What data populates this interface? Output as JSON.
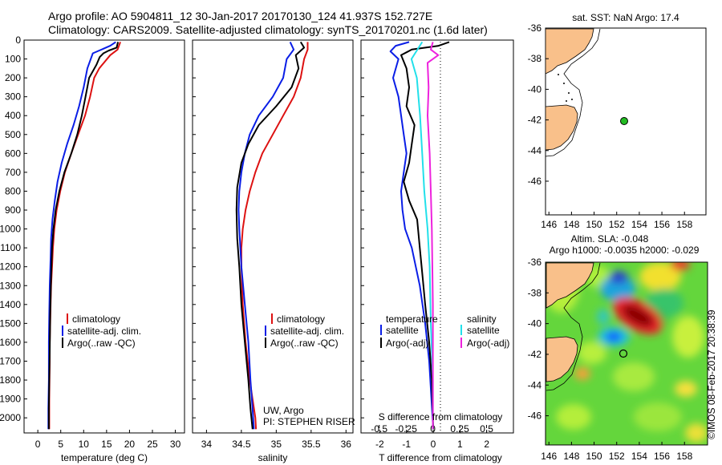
{
  "header": {
    "line1": "Argo profile: AO 5904811_12 30-Jan-2017 20170130_124 41.937S 152.727E",
    "line2": "Climatology: CARS2009. Satellite-adjusted climatology: synTS_20170201.nc (1.6d later)"
  },
  "side_label": "©IMOS 08-Feb-2017 20:38:39",
  "colors": {
    "climatology": "#dd1111",
    "satellite": "#0a1ee6",
    "argo": "#000000",
    "sal_satellite": "#22e0ea",
    "sal_argo": "#ee22dd",
    "land": "#f9c08a",
    "marker_green": "#22bb22"
  },
  "panels": {
    "temperature": {
      "xlabel": "temperature (deg C)",
      "xticks": [
        "0",
        "5",
        "10",
        "15",
        "20",
        "25",
        "30"
      ],
      "legend": [
        "climatology",
        "satellite-adj. clim.",
        "Argo(..raw -QC)"
      ]
    },
    "salinity": {
      "xlabel": "salinity",
      "xticks": [
        "34",
        "34.5",
        "35",
        "35.5",
        "36"
      ],
      "legend": [
        "climatology",
        "satellite-adj. clim.",
        "Argo(..raw -QC)"
      ],
      "note1": "UW, Argo",
      "note2": "PI: STEPHEN RISER"
    },
    "difference": {
      "xlabel": "T difference from climatology",
      "xlabel_top": "S difference from climatology",
      "xticks": [
        "-2",
        "-1",
        "0",
        "1",
        "2"
      ],
      "xticks_top": [
        "-0.5",
        "-0.25",
        "0",
        "0.25",
        "0.5"
      ],
      "legend_t_title": "temperature",
      "legend_s_title": "salinity",
      "legend_t": [
        "satellite",
        "Argo(-adj)"
      ],
      "legend_s": [
        "satellite",
        "Argo(-adj)"
      ]
    },
    "depth_ticks": [
      "0",
      "100",
      "200",
      "300",
      "400",
      "500",
      "600",
      "700",
      "800",
      "900",
      "1000",
      "1100",
      "1200",
      "1300",
      "1400",
      "1500",
      "1600",
      "1700",
      "1800",
      "1900",
      "2000"
    ]
  },
  "maps": {
    "sst_title": "sat. SST: NaN Argo: 17.4",
    "sla_title1": "Altim. SLA: -0.048",
    "sla_title2": "Argo h1000: -0.0035 h2000: -0.029",
    "lon_ticks": [
      "146",
      "148",
      "150",
      "152",
      "154",
      "156",
      "158"
    ],
    "lat_ticks": [
      "-36",
      "-38",
      "-40",
      "-42",
      "-44",
      "-46"
    ]
  },
  "chart_data": [
    {
      "type": "line",
      "title": "",
      "xlabel": "temperature (deg C)",
      "ylabel": "",
      "xlim": [
        -3,
        32
      ],
      "ylim": [
        2080,
        0
      ],
      "series": [
        {
          "name": "climatology",
          "color": "#dd1111",
          "x": [
            18.0,
            17.4,
            15.8,
            13.4,
            12.3,
            11.4,
            10.3,
            8.8,
            7.3,
            5.9,
            4.9,
            4.1,
            3.6,
            3.3,
            3.1,
            2.9,
            2.8,
            2.7,
            2.6,
            2.6,
            2.5,
            2.5
          ],
          "y": [
            10,
            50,
            80,
            150,
            200,
            300,
            400,
            500,
            600,
            700,
            800,
            900,
            1000,
            1100,
            1200,
            1300,
            1400,
            1500,
            1600,
            1700,
            1900,
            2060
          ]
        },
        {
          "name": "satellite-adj. clim.",
          "color": "#0a1ee6",
          "x": [
            17.0,
            15.8,
            12.0,
            10.8,
            10.0,
            9.0,
            7.8,
            6.4,
            5.2,
            4.3,
            3.7,
            3.2,
            2.9,
            2.8,
            2.6,
            2.5,
            2.4,
            2.4,
            2.3,
            2.3
          ],
          "y": [
            10,
            30,
            70,
            150,
            250,
            350,
            450,
            550,
            650,
            750,
            850,
            950,
            1050,
            1150,
            1300,
            1450,
            1600,
            1800,
            1950,
            2060
          ]
        },
        {
          "name": "Argo(..raw -QC)",
          "color": "#000000",
          "x": [
            17.5,
            17.2,
            15.5,
            14.3,
            13.5,
            12.8,
            11.2,
            10.4,
            9.6,
            8.6,
            7.3,
            5.8,
            4.7,
            3.9,
            3.4,
            3.1,
            2.9,
            2.7,
            2.6,
            2.5,
            2.4,
            2.4
          ],
          "y": [
            10,
            40,
            55,
            70,
            90,
            130,
            200,
            300,
            400,
            500,
            600,
            700,
            800,
            900,
            1000,
            1100,
            1250,
            1450,
            1650,
            1800,
            1950,
            2060
          ]
        }
      ]
    },
    {
      "type": "line",
      "title": "",
      "xlabel": "salinity",
      "ylabel": "",
      "xlim": [
        33.8,
        36.1
      ],
      "ylim": [
        2080,
        0
      ],
      "series": [
        {
          "name": "climatology",
          "color": "#dd1111",
          "x": [
            35.45,
            35.45,
            35.4,
            35.35,
            35.25,
            35.1,
            34.95,
            34.8,
            34.7,
            34.62,
            34.56,
            34.52,
            34.5,
            34.5,
            34.52,
            34.56,
            34.62,
            34.66,
            34.7,
            34.71
          ],
          "y": [
            10,
            50,
            100,
            200,
            300,
            400,
            500,
            600,
            700,
            800,
            900,
            1000,
            1100,
            1200,
            1400,
            1600,
            1800,
            1900,
            2000,
            2060
          ]
        },
        {
          "name": "satellite-adj. clim.",
          "color": "#0a1ee6",
          "x": [
            35.2,
            35.25,
            35.15,
            35.1,
            34.95,
            34.75,
            34.62,
            34.55,
            34.5,
            34.47,
            34.46,
            34.47,
            34.5,
            34.55,
            34.6,
            34.63,
            34.66,
            34.68
          ],
          "y": [
            10,
            50,
            100,
            200,
            300,
            400,
            500,
            600,
            700,
            800,
            900,
            1000,
            1200,
            1400,
            1600,
            1800,
            1950,
            2060
          ]
        },
        {
          "name": "Argo(..raw -QC)",
          "color": "#000000",
          "x": [
            35.35,
            35.4,
            35.28,
            35.32,
            35.22,
            35.0,
            34.75,
            34.6,
            34.5,
            34.44,
            34.43,
            34.44,
            34.47,
            34.5,
            34.55,
            34.6,
            34.63,
            34.66
          ],
          "y": [
            10,
            40,
            80,
            150,
            250,
            350,
            450,
            550,
            650,
            780,
            900,
            1050,
            1200,
            1400,
            1600,
            1800,
            1950,
            2060
          ]
        }
      ]
    },
    {
      "type": "line",
      "title": "",
      "xlabel": "T difference from climatology",
      "xlabel_top": "S difference from climatology",
      "ylabel": "",
      "xlim": [
        -2.7,
        3.0
      ],
      "xlim_top": [
        -0.67,
        0.75
      ],
      "ylim": [
        2080,
        0
      ],
      "series": [
        {
          "name": "temperature satellite",
          "axis": "T",
          "color": "#0a1ee6",
          "x": [
            -0.9,
            -1.4,
            -1.6,
            -1.3,
            -1.5,
            -1.3,
            -1.2,
            -1.1,
            -1.0,
            -1.1,
            -1.2,
            -1.15,
            -1.05,
            -0.8,
            -0.5,
            -0.3,
            -0.15,
            0.0
          ],
          "y": [
            10,
            30,
            60,
            100,
            200,
            300,
            400,
            500,
            600,
            700,
            800,
            900,
            1000,
            1100,
            1300,
            1500,
            1700,
            2060
          ]
        },
        {
          "name": "temperature Argo(-adj)",
          "axis": "T",
          "color": "#000000",
          "x": [
            0.6,
            0.2,
            -0.8,
            -1.2,
            -1.0,
            -0.9,
            -1.0,
            -0.7,
            -0.8,
            -0.9,
            -1.1,
            -0.9,
            -0.6,
            -0.5,
            -0.4,
            -0.3,
            -0.15,
            -0.05,
            0.0
          ],
          "y": [
            10,
            30,
            50,
            80,
            150,
            250,
            350,
            450,
            550,
            650,
            750,
            850,
            950,
            1100,
            1250,
            1400,
            1600,
            1800,
            2060
          ]
        },
        {
          "name": "salinity satellite",
          "axis": "S",
          "color": "#22e0ea",
          "x": [
            -0.1,
            -0.2,
            -0.15,
            -0.12,
            -0.1,
            -0.08,
            -0.05,
            -0.03,
            -0.02,
            0.0,
            0.0
          ],
          "y": [
            10,
            100,
            200,
            400,
            600,
            800,
            1000,
            1200,
            1500,
            1800,
            2060
          ]
        },
        {
          "name": "salinity Argo(-adj)",
          "axis": "S",
          "color": "#ee22dd",
          "x": [
            0.0,
            -0.02,
            0.05,
            -0.05,
            -0.04,
            -0.05,
            -0.03,
            -0.02,
            -0.01,
            0.0,
            0.0
          ],
          "y": [
            10,
            50,
            80,
            120,
            250,
            400,
            600,
            800,
            1000,
            1400,
            2060
          ]
        }
      ]
    }
  ]
}
